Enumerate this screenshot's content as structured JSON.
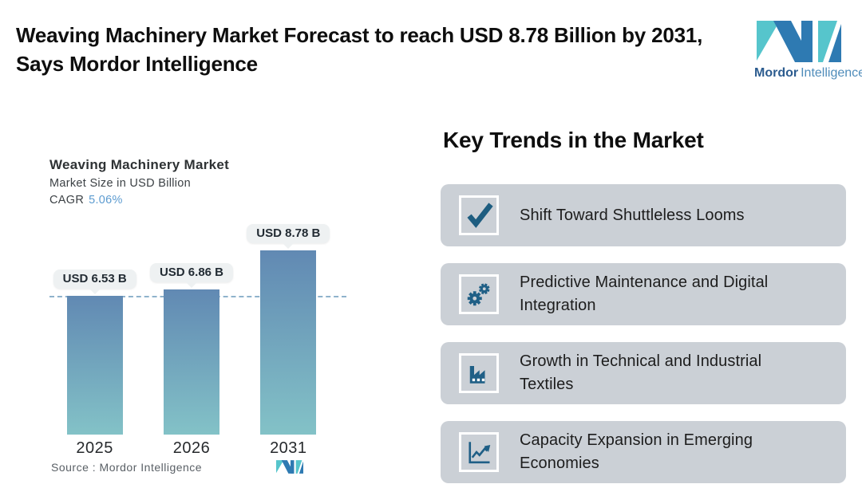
{
  "header": {
    "title": "Weaving Machinery Market Forecast to reach USD 8.78 Billion by 2031, Says Mordor Intelligence",
    "logo": {
      "name_bold": "Mordor",
      "name_light": "Intelligence"
    }
  },
  "chart": {
    "title": "Weaving Machinery Market",
    "subtitle": "Market Size in USD Billion",
    "cagr_label": "CAGR",
    "cagr_value": "5.06%",
    "source": "Source :  Mordor Intelligence"
  },
  "chart_data": {
    "type": "bar",
    "title": "Weaving Machinery Market",
    "ylabel": "Market Size in USD Billion",
    "cagr_percent": 5.06,
    "categories": [
      "2025",
      "2026",
      "2031"
    ],
    "values": [
      6.53,
      6.86,
      8.78
    ],
    "labels": [
      "USD 6.53 B",
      "USD 6.86 B",
      "USD 8.78 B"
    ],
    "unit": "USD Billion",
    "ylim": [
      0,
      9.9
    ],
    "reference_line_value": 6.53,
    "grid": false,
    "legend": false
  },
  "trends": {
    "heading": "Key Trends in the Market",
    "items": [
      {
        "icon": "checkmark-icon",
        "label": "Shift Toward Shuttleless Looms"
      },
      {
        "icon": "gears-icon",
        "label": "Predictive Maintenance and Digital Integration"
      },
      {
        "icon": "factory-icon",
        "label": "Growth in Technical and Industrial Textiles"
      },
      {
        "icon": "trend-chart-icon",
        "label": "Capacity Expansion in Emerging Economies"
      }
    ]
  },
  "colors": {
    "brand_blue": "#2e7ab2",
    "brand_teal": "#56c5cc",
    "bar_top": "#6189b3",
    "bar_bottom": "#83c2c7",
    "card_bg": "#cbd0d6",
    "icon_blue": "#1f5f86",
    "bubble_bg": "#eef1f2",
    "dashed_line": "#8fb3cc",
    "cagr_value": "#5c9bd0"
  }
}
